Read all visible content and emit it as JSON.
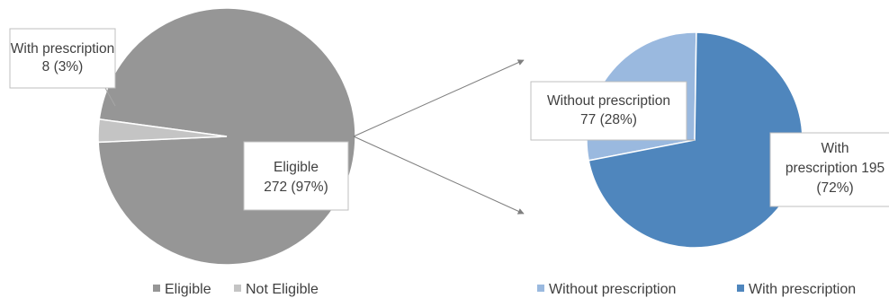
{
  "chart_data": [
    {
      "type": "pie",
      "title": "",
      "categories": [
        "Eligible",
        "Not Eligible"
      ],
      "values": [
        272,
        8
      ],
      "percent_labels": [
        "(97%)",
        "(3%)"
      ],
      "colors": [
        "#969696",
        "#c4c4c4"
      ],
      "legend": {
        "position": "bottom",
        "items": [
          "Eligible",
          "Not Eligible"
        ]
      }
    },
    {
      "type": "pie",
      "title": "",
      "categories": [
        "Without prescription",
        "With prescription"
      ],
      "values": [
        77,
        195
      ],
      "percent_labels": [
        "(28%)",
        "(72%)"
      ],
      "colors": [
        "#9ab9df",
        "#4f86bd"
      ],
      "legend": {
        "position": "bottom",
        "items": [
          "Without prescription",
          "With prescription"
        ]
      }
    }
  ]
}
